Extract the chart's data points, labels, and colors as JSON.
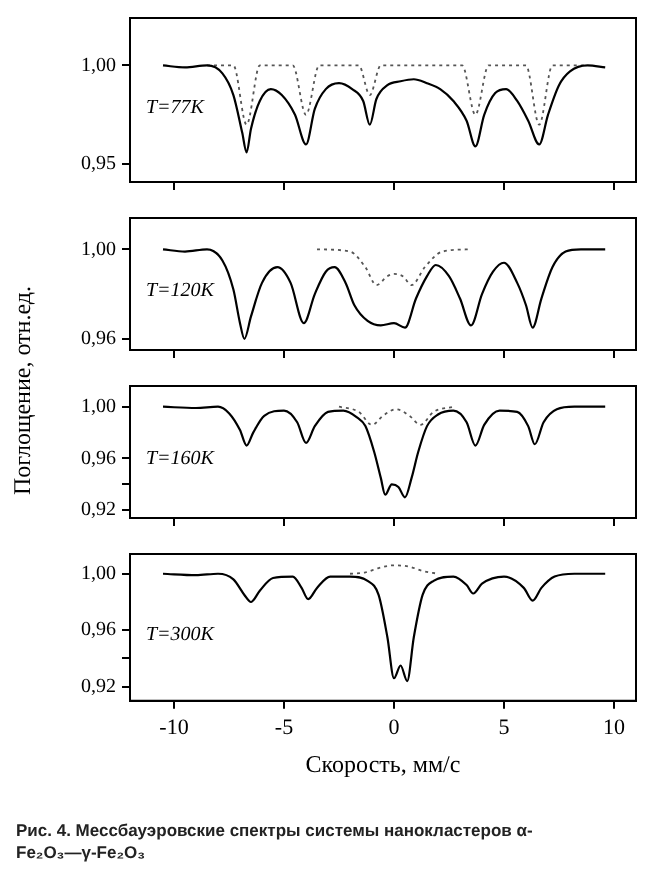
{
  "chart_data": [
    {
      "type": "line",
      "annotations": [
        "T=77K"
      ],
      "xlim": [
        -12,
        11
      ],
      "xticks": [
        -10,
        -5,
        0,
        5,
        10
      ],
      "ylim": [
        0.941,
        1.024
      ],
      "yticks": [
        {
          "value": 1.0,
          "label": "1,00"
        },
        {
          "value": 0.95,
          "label": "0,95"
        }
      ],
      "tick_labels": "y",
      "grid": false,
      "legend": false,
      "marker": "none",
      "series": [
        {
          "color": "#000000",
          "line_style": "solid",
          "x": [
            -10.5,
            -9.5,
            -8.5,
            -7.8,
            -7.3,
            -6.9,
            -6.7,
            -6.5,
            -6.1,
            -5.6,
            -5.1,
            -4.5,
            -4.0,
            -3.6,
            -3.1,
            -2.5,
            -1.9,
            -1.4,
            -1.1,
            -0.8,
            -0.3,
            0.3,
            0.9,
            1.5,
            2.1,
            2.7,
            3.3,
            3.7,
            4.1,
            4.6,
            5.1,
            5.6,
            6.1,
            6.6,
            7.0,
            7.5,
            8.0,
            8.8,
            9.6
          ],
          "values": [
            1.0,
            0.999,
            1.0,
            0.996,
            0.985,
            0.966,
            0.956,
            0.968,
            0.982,
            0.988,
            0.985,
            0.975,
            0.96,
            0.978,
            0.988,
            0.991,
            0.988,
            0.982,
            0.97,
            0.983,
            0.99,
            0.992,
            0.993,
            0.991,
            0.988,
            0.982,
            0.972,
            0.959,
            0.975,
            0.986,
            0.988,
            0.982,
            0.972,
            0.96,
            0.975,
            0.99,
            0.997,
            1.0,
            0.999
          ]
        },
        {
          "color": "#555555",
          "line_style": "dotted",
          "x": [
            -8.5,
            -7.3,
            -6.7,
            -6.1,
            -4.6,
            -4.0,
            -3.4,
            -1.6,
            -1.1,
            -0.6,
            3.1,
            3.7,
            4.3,
            6.0,
            6.6,
            7.2,
            8.8
          ],
          "values": [
            1.0,
            1.0,
            0.97,
            1.0,
            1.0,
            0.975,
            1.0,
            1.0,
            0.985,
            1.0,
            1.0,
            0.975,
            1.0,
            1.0,
            0.97,
            1.0,
            1.0
          ]
        }
      ]
    },
    {
      "type": "line",
      "annotations": [
        "T=120K"
      ],
      "ylabel": "Поглощение, отн.ед.",
      "xlim": [
        -12,
        11
      ],
      "xticks": [
        -10,
        -5,
        0,
        5,
        10
      ],
      "ylim": [
        0.955,
        1.014
      ],
      "yticks": [
        {
          "value": 1.0,
          "label": "1,00"
        },
        {
          "value": 0.96,
          "label": "0,96"
        }
      ],
      "tick_labels": "y",
      "grid": false,
      "legend": false,
      "marker": "none",
      "series": [
        {
          "color": "#000000",
          "line_style": "solid",
          "x": [
            -10.5,
            -9.5,
            -8.5,
            -7.8,
            -7.3,
            -7.0,
            -6.8,
            -6.5,
            -6.0,
            -5.3,
            -4.7,
            -4.1,
            -3.6,
            -3.1,
            -2.7,
            -2.2,
            -1.8,
            -1.2,
            -0.6,
            0,
            0.5,
            1.0,
            1.5,
            1.9,
            2.5,
            3.0,
            3.5,
            4.0,
            4.5,
            5.0,
            5.6,
            6.0,
            6.3,
            6.7,
            7.2,
            7.8,
            8.5,
            9.6
          ],
          "values": [
            1.0,
            0.999,
            1.0,
            0.995,
            0.982,
            0.967,
            0.96,
            0.97,
            0.985,
            0.992,
            0.985,
            0.967,
            0.98,
            0.99,
            0.992,
            0.985,
            0.975,
            0.968,
            0.966,
            0.967,
            0.965,
            0.978,
            0.988,
            0.993,
            0.988,
            0.978,
            0.966,
            0.98,
            0.99,
            0.994,
            0.985,
            0.975,
            0.965,
            0.978,
            0.992,
            0.999,
            1.0,
            1.0
          ]
        },
        {
          "color": "#555555",
          "line_style": "dotted",
          "x": [
            -3.5,
            -2.0,
            -1.3,
            -0.8,
            -0.3,
            0,
            0.4,
            0.8,
            1.4,
            2.2,
            3.5
          ],
          "values": [
            1.0,
            0.999,
            0.992,
            0.984,
            0.988,
            0.989,
            0.988,
            0.984,
            0.992,
            0.999,
            1.0
          ]
        }
      ]
    },
    {
      "type": "line",
      "annotations": [
        "T=160K"
      ],
      "xlim": [
        -12,
        11
      ],
      "xticks": [
        -10,
        -5,
        0,
        5,
        10
      ],
      "ylim": [
        0.914,
        1.016
      ],
      "yticks": [
        {
          "value": 1.0,
          "label": "1,00"
        },
        {
          "value": 0.96,
          "label": "0,96"
        },
        {
          "value": 0.94,
          "label": null
        },
        {
          "value": 0.92,
          "label": "0,92"
        }
      ],
      "tick_labels": "y",
      "grid": false,
      "legend": false,
      "marker": "none",
      "series": [
        {
          "color": "#000000",
          "line_style": "solid",
          "x": [
            -10.5,
            -9,
            -8,
            -7.5,
            -7.0,
            -6.7,
            -6.4,
            -5.9,
            -5.0,
            -4.4,
            -4.0,
            -3.6,
            -3.0,
            -2.3,
            -1.7,
            -1.3,
            -0.9,
            -0.6,
            -0.4,
            -0.1,
            0.2,
            0.5,
            0.8,
            1.1,
            1.5,
            2.0,
            2.7,
            3.3,
            3.7,
            4.1,
            4.8,
            5.6,
            6.1,
            6.4,
            6.8,
            7.4,
            8.2,
            9.6
          ],
          "values": [
            1.0,
            0.999,
            1.0,
            0.995,
            0.982,
            0.97,
            0.98,
            0.993,
            0.997,
            0.988,
            0.972,
            0.985,
            0.996,
            0.997,
            0.992,
            0.985,
            0.965,
            0.945,
            0.932,
            0.94,
            0.938,
            0.93,
            0.945,
            0.965,
            0.985,
            0.994,
            0.997,
            0.988,
            0.97,
            0.986,
            0.997,
            0.996,
            0.985,
            0.971,
            0.988,
            0.998,
            1.0,
            1.0
          ]
        },
        {
          "color": "#555555",
          "line_style": "dotted",
          "x": [
            -2.5,
            -1.6,
            -1.0,
            -0.5,
            0.1,
            0.7,
            1.2,
            1.8,
            2.7
          ],
          "values": [
            1.0,
            0.996,
            0.986,
            0.993,
            0.998,
            0.993,
            0.986,
            0.996,
            1.0
          ]
        }
      ]
    },
    {
      "type": "line",
      "annotations": [
        "T=300K",
        "Рис. 4. Мессбауэровские спектры системы нанокластеров α-Fe₂O₃—γ-Fe₂O₃"
      ],
      "xlabel": "Скорость, мм/с",
      "xlim": [
        -12,
        11
      ],
      "xticks": [
        -10,
        -5,
        0,
        5,
        10
      ],
      "ylim": [
        0.91,
        1.014
      ],
      "yticks": [
        {
          "value": 1.0,
          "label": "1,00"
        },
        {
          "value": 0.96,
          "label": "0,96"
        },
        {
          "value": 0.94,
          "label": null
        },
        {
          "value": 0.92,
          "label": "0,92"
        }
      ],
      "grid": false,
      "legend": false,
      "marker": "none",
      "series": [
        {
          "color": "#000000",
          "line_style": "solid",
          "x": [
            -10.5,
            -9,
            -8,
            -7.3,
            -6.8,
            -6.5,
            -6.1,
            -5.5,
            -4.6,
            -4.2,
            -3.9,
            -3.5,
            -2.9,
            -2.0,
            -1.2,
            -0.7,
            -0.3,
            0,
            0.3,
            0.6,
            0.9,
            1.3,
            1.8,
            2.7,
            3.3,
            3.6,
            4.0,
            5.0,
            5.9,
            6.3,
            6.7,
            7.3,
            8.2,
            9.6
          ],
          "values": [
            1.0,
            0.999,
            1.0,
            0.996,
            0.985,
            0.98,
            0.988,
            0.997,
            0.998,
            0.99,
            0.982,
            0.99,
            0.998,
            0.998,
            0.995,
            0.985,
            0.955,
            0.926,
            0.935,
            0.924,
            0.955,
            0.985,
            0.995,
            0.998,
            0.992,
            0.986,
            0.993,
            0.998,
            0.99,
            0.981,
            0.99,
            0.998,
            1.0,
            1.0
          ]
        },
        {
          "color": "#555555",
          "line_style": "dotted",
          "x": [
            -2.0,
            -1.3,
            -0.7,
            0,
            0.7,
            1.3,
            2.0
          ],
          "values": [
            1.0,
            1.001,
            1.004,
            1.006,
            1.005,
            1.002,
            1.0
          ]
        }
      ]
    }
  ]
}
